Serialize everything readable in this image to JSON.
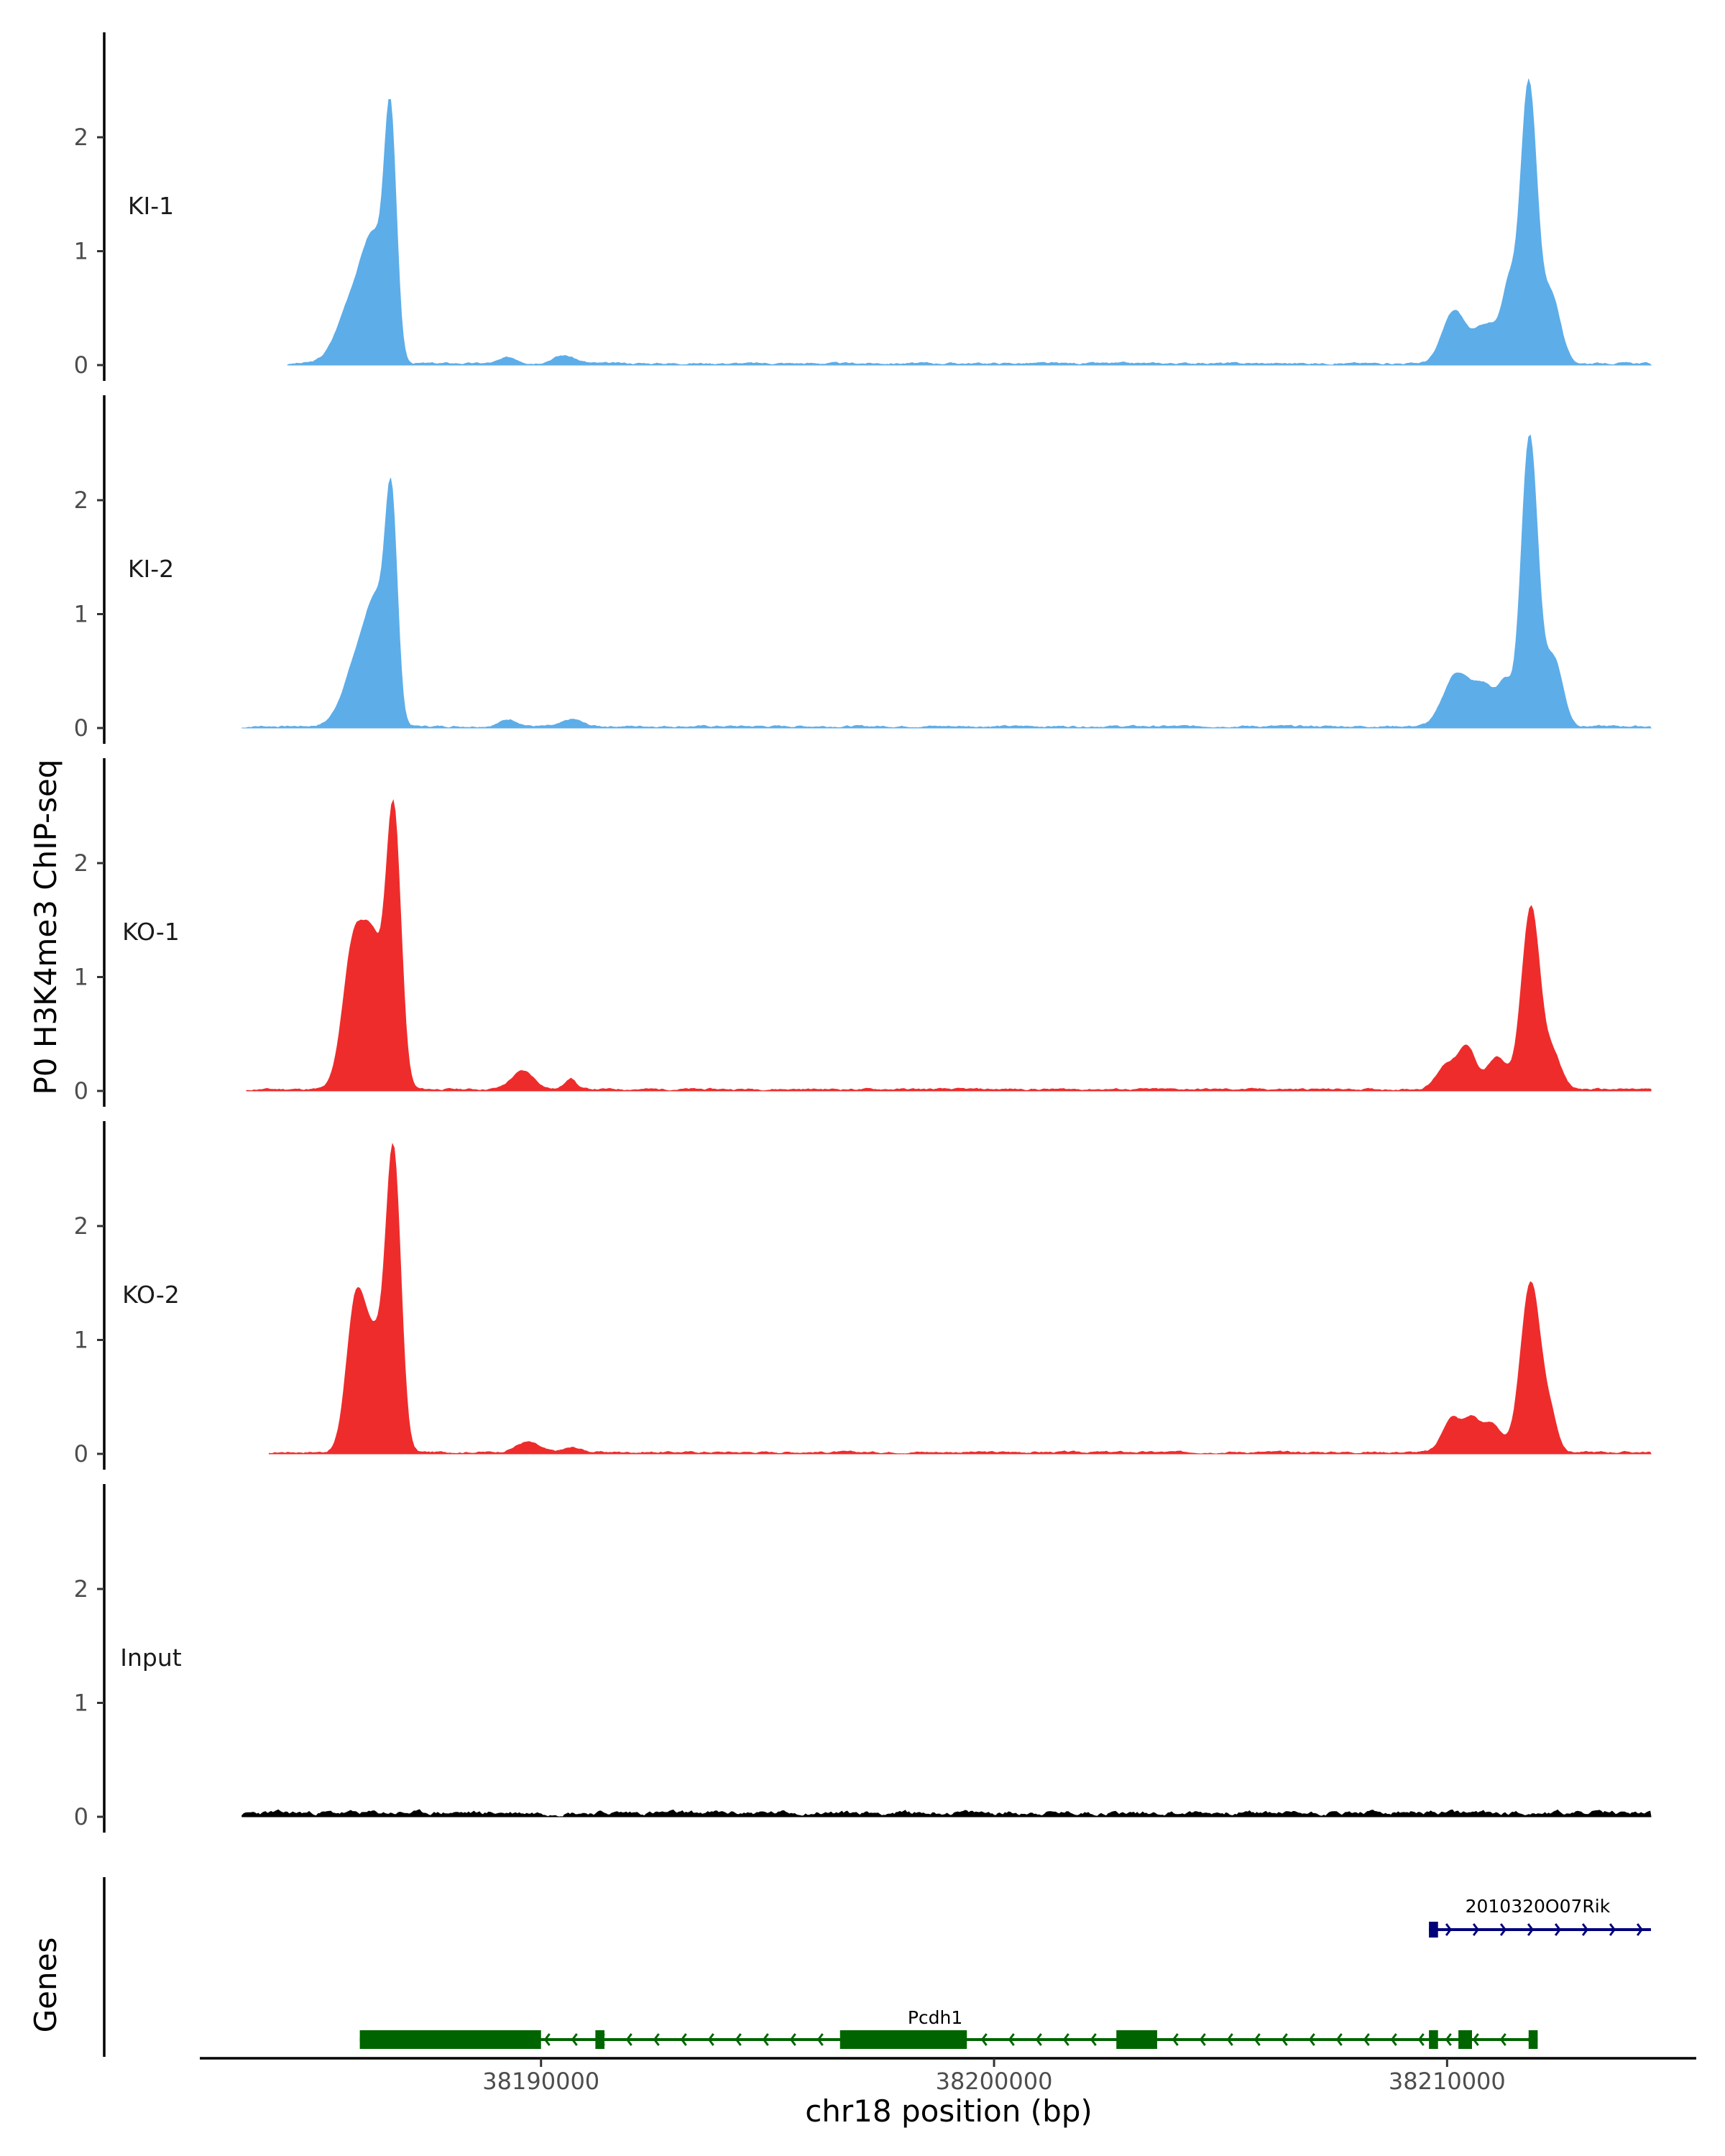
{
  "chart_data": {
    "type": "area",
    "title": "",
    "xlabel": "chr18 position (bp)",
    "ylabel": "P0 H3K4me3 ChIP-seq",
    "xlim": [
      38182500,
      38215500
    ],
    "ylim": [
      0,
      2.9
    ],
    "x_ticks": [
      38190000,
      38200000,
      38210000
    ],
    "x_tick_labels": [
      "38190000",
      "38200000",
      "38210000"
    ],
    "y_ticks": [
      0,
      1,
      2
    ],
    "y_tick_labels": [
      "0",
      "1",
      "2"
    ],
    "baseline_noise": 0.025,
    "tracks": [
      {
        "name": "KI-1",
        "color": "#5dade9",
        "x_start": 38184400,
        "x_end": 38214500,
        "noise_seed": 3,
        "peaks": [
          [
            38185900,
            0.6,
            350
          ],
          [
            38186350,
            0.85,
            250
          ],
          [
            38186680,
            1.9,
            130
          ],
          [
            38189300,
            0.05,
            200
          ],
          [
            38190500,
            0.07,
            250
          ],
          [
            38210150,
            0.45,
            250
          ],
          [
            38210900,
            0.35,
            300
          ],
          [
            38211370,
            0.55,
            150
          ],
          [
            38211800,
            2.45,
            180
          ],
          [
            38212300,
            0.6,
            200
          ]
        ]
      },
      {
        "name": "KI-2",
        "color": "#5dade9",
        "x_start": 38183400,
        "x_end": 38214500,
        "noise_seed": 7,
        "peaks": [
          [
            38186000,
            0.62,
            330
          ],
          [
            38186400,
            0.8,
            230
          ],
          [
            38186700,
            1.75,
            130
          ],
          [
            38189300,
            0.06,
            200
          ],
          [
            38190700,
            0.06,
            200
          ],
          [
            38210200,
            0.45,
            280
          ],
          [
            38210850,
            0.35,
            280
          ],
          [
            38211300,
            0.3,
            140
          ],
          [
            38211820,
            2.55,
            180
          ],
          [
            38212350,
            0.6,
            200
          ]
        ]
      },
      {
        "name": "KO-1",
        "color": "#ee2c2c",
        "x_start": 38183500,
        "x_end": 38214500,
        "noise_seed": 11,
        "peaks": [
          [
            38185850,
            1.2,
            230
          ],
          [
            38186300,
            1.2,
            230
          ],
          [
            38186750,
            2.35,
            160
          ],
          [
            38189600,
            0.16,
            250
          ],
          [
            38190650,
            0.1,
            120
          ],
          [
            38210000,
            0.22,
            220
          ],
          [
            38210450,
            0.35,
            190
          ],
          [
            38211100,
            0.28,
            220
          ],
          [
            38211850,
            1.6,
            200
          ],
          [
            38212350,
            0.3,
            180
          ]
        ]
      },
      {
        "name": "KO-2",
        "color": "#ee2c2c",
        "x_start": 38184000,
        "x_end": 38214500,
        "noise_seed": 17,
        "peaks": [
          [
            38185900,
            1.2,
            200
          ],
          [
            38186350,
            0.95,
            260
          ],
          [
            38186750,
            2.4,
            160
          ],
          [
            38189700,
            0.09,
            250
          ],
          [
            38190700,
            0.04,
            200
          ],
          [
            38210100,
            0.3,
            200
          ],
          [
            38210550,
            0.28,
            180
          ],
          [
            38211000,
            0.25,
            200
          ],
          [
            38211850,
            1.5,
            220
          ],
          [
            38212300,
            0.25,
            150
          ]
        ]
      },
      {
        "name": "Input",
        "color": "#000000",
        "x_start": 38183400,
        "x_end": 38214500,
        "noise_seed": 23,
        "noise_level": 0.06,
        "peaks": []
      }
    ],
    "genes_label": "Genes",
    "genes": [
      {
        "name": "Pcdh1",
        "strand": "-",
        "color": "#006400",
        "start": 38186000,
        "end": 38212000,
        "exons": [
          [
            38186000,
            38190000
          ],
          [
            38191200,
            38191400
          ],
          [
            38196600,
            38199400
          ],
          [
            38202700,
            38203600
          ],
          [
            38209600,
            38209800
          ],
          [
            38210250,
            38210550
          ],
          [
            38211800,
            38212000
          ]
        ]
      },
      {
        "name": "2010320O07Rik",
        "strand": "+",
        "color": "#00007a",
        "start": 38209600,
        "end": 38214500,
        "exons": [
          [
            38209600,
            38209800
          ]
        ]
      }
    ]
  }
}
